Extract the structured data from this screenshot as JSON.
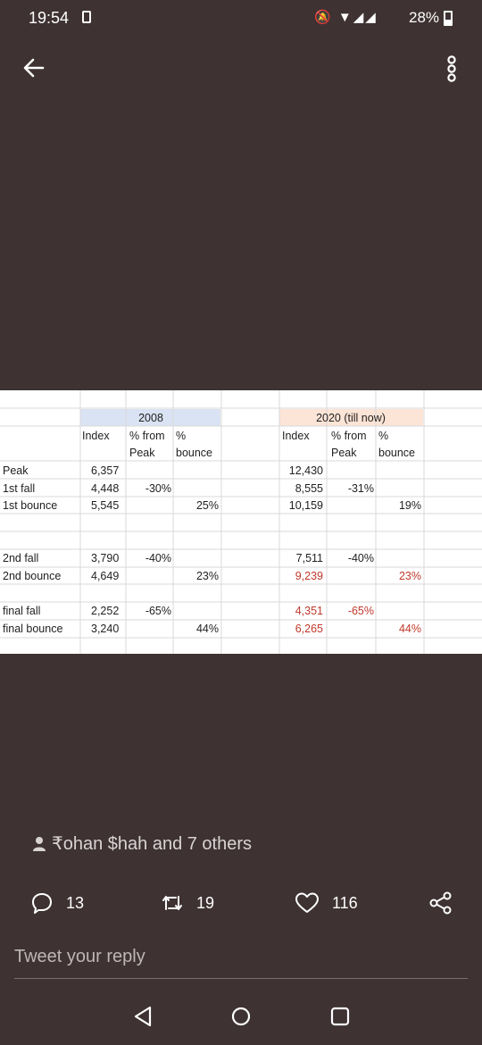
{
  "status": {
    "time": "19:54",
    "signal_icons": "🔕 ▼◢◢",
    "battery": "28%"
  },
  "sheet": {
    "header_2008": "2008",
    "header_2020": "2020 (till now)",
    "col_index": "Index",
    "col_from": "% from",
    "col_pct": "%",
    "col_peak": "Peak",
    "col_bounce": "bounce",
    "rows": [
      {
        "label": "Peak",
        "i08": "6,357",
        "f08": "",
        "b08": "",
        "i20": "12,430",
        "f20": "",
        "b20": ""
      },
      {
        "label": "1st fall",
        "i08": "4,448",
        "f08": "-30%",
        "b08": "",
        "i20": "8,555",
        "f20": "-31%",
        "b20": ""
      },
      {
        "label": "1st bounce",
        "i08": "5,545",
        "f08": "",
        "b08": "25%",
        "i20": "10,159",
        "f20": "",
        "b20": "19%"
      },
      {
        "label": "2nd fall",
        "i08": "3,790",
        "f08": "-40%",
        "b08": "",
        "i20": "7,511",
        "f20": "-40%",
        "b20": ""
      },
      {
        "label": "2nd bounce",
        "i08": "4,649",
        "f08": "",
        "b08": "23%",
        "i20": "9,239",
        "f20": "",
        "b20": "23%"
      },
      {
        "label": "final fall",
        "i08": "2,252",
        "f08": "-65%",
        "b08": "",
        "i20": "4,351",
        "f20": "-65%",
        "b20": ""
      },
      {
        "label": "final bounce",
        "i08": "3,240",
        "f08": "",
        "b08": "44%",
        "i20": "6,265",
        "f20": "",
        "b20": "44%"
      }
    ],
    "colors": {
      "header_2008": "#dae3f3",
      "header_2020": "#fce4d6",
      "red_text": "#c0392b"
    }
  },
  "tweet": {
    "liked_by": "₹ohan $hah and 7 others",
    "replies": "13",
    "retweets": "19",
    "likes": "116",
    "reply_placeholder": "Tweet your reply"
  },
  "icons": [
    "back-arrow-icon",
    "more-vertical-icon",
    "person-icon",
    "reply-icon",
    "retweet-icon",
    "heart-icon",
    "share-icon",
    "nav-back-icon",
    "nav-home-icon",
    "nav-recents-icon"
  ]
}
